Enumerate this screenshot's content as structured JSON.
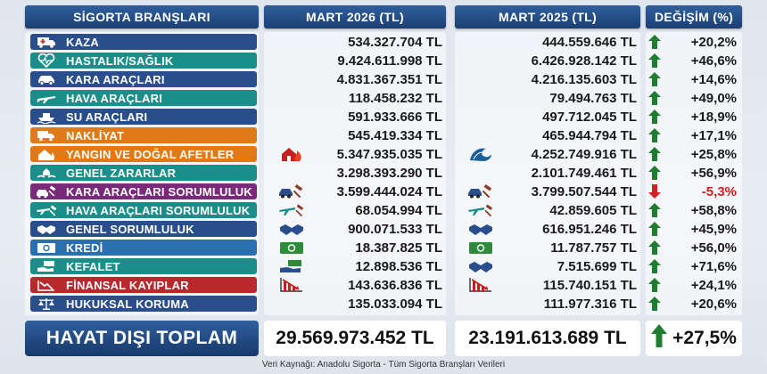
{
  "headers": {
    "branches": "SİGORTA BRANŞLARI",
    "y2026": "MART 2026 (TL)",
    "y2025": "MART 2025 (TL)",
    "change": "DEĞİŞİM (%)"
  },
  "colors": {
    "header_bg": "#1b3f74",
    "up_arrow": "#1e7d2e",
    "down_arrow": "#d21f1f",
    "negative_text": "#d21f1f"
  },
  "rows": [
    {
      "label": "KAZA",
      "icon": "ambulance-icon",
      "color": "#2a4e8c",
      "v2026": "534.327.704 TL",
      "v2025": "444.559.646 TL",
      "change": "+20,2%",
      "direction": "up"
    },
    {
      "label": "HASTALIK/SAĞLIK",
      "icon": "heart-pulse-icon",
      "color": "#1a8f8a",
      "v2026": "9.424.611.998 TL",
      "v2025": "6.426.928.142 TL",
      "change": "+46,6%",
      "direction": "up"
    },
    {
      "label": "KARA ARAÇLARI",
      "icon": "car-icon",
      "color": "#2a4e8c",
      "v2026": "4.831.367.351 TL",
      "v2025": "4.216.135.603 TL",
      "change": "+14,6%",
      "direction": "up"
    },
    {
      "label": "HAVA ARAÇLARI",
      "icon": "airplane-icon",
      "color": "#1a8f8a",
      "v2026": "118.458.232 TL",
      "v2025": "79.494.763 TL",
      "change": "+49,0%",
      "direction": "up"
    },
    {
      "label": "SU ARAÇLARI",
      "icon": "ship-icon",
      "color": "#2a4e8c",
      "v2026": "591.933.666 TL",
      "v2025": "497.712.045 TL",
      "change": "+18,9%",
      "direction": "up"
    },
    {
      "label": "NAKLİYAT",
      "icon": "truck-icon",
      "color": "#e07a17",
      "v2026": "545.419.334 TL",
      "v2025": "465.944.794 TL",
      "change": "+17,1%",
      "direction": "up"
    },
    {
      "label": "YANGIN VE DOĞAL AFETLER",
      "icon": "fire-house-icon",
      "color": "#e07a17",
      "v2026": "5.347.935.035 TL",
      "v2025": "4.252.749.916 TL",
      "change": "+25,8%",
      "direction": "up",
      "icon2026": "house-fire-icon",
      "icon2025": "tsunami-icon"
    },
    {
      "label": "GENEL ZARARLAR",
      "icon": "hands-house-icon",
      "color": "#1a8f8a",
      "v2026": "3.298.393.290 TL",
      "v2025": "2.101.749.461 TL",
      "change": "+56,9%",
      "direction": "up"
    },
    {
      "label": "KARA ARAÇLARI SORUMLULUK",
      "icon": "car-gavel-icon",
      "color": "#7a2a7a",
      "v2026": "3.599.444.024 TL",
      "v2025": "3.799.507.544 TL",
      "change": "-5,3%",
      "direction": "down",
      "icon2026": "car-gavel-icon",
      "icon2025": "car-gavel-icon"
    },
    {
      "label": "HAVA ARAÇLARI SORUMLULUK",
      "icon": "plane-gavel-icon",
      "color": "#1a8f8a",
      "v2026": "68.054.994 TL",
      "v2025": "42.859.605 TL",
      "change": "+58,8%",
      "direction": "up",
      "icon2026": "plane-gavel-icon",
      "icon2025": "plane-gavel-icon"
    },
    {
      "label": "GENEL SORUMLULUK",
      "icon": "handshake-icon",
      "color": "#2a4e8c",
      "v2026": "900.071.533 TL",
      "v2025": "616.951.246 TL",
      "change": "+45,9%",
      "direction": "up",
      "icon2026": "handshake-icon",
      "icon2025": "handshake-icon"
    },
    {
      "label": "KREDİ",
      "icon": "money-icon",
      "color": "#2a6fb0",
      "v2026": "18.387.825 TL",
      "v2025": "11.787.757 TL",
      "change": "+56,0%",
      "direction": "up",
      "icon2026": "money-icon",
      "icon2025": "money-icon"
    },
    {
      "label": "KEFALET",
      "icon": "hand-money-icon",
      "color": "#1a8f8a",
      "v2026": "12.898.536 TL",
      "v2025": "7.515.699 TL",
      "change": "+71,6%",
      "direction": "up",
      "icon2026": "hand-money-icon",
      "icon2025": "handshake-icon"
    },
    {
      "label": "FİNANSAL KAYIPLAR",
      "icon": "chart-down-icon",
      "color": "#b8282c",
      "v2026": "143.636.836 TL",
      "v2025": "115.740.151 TL",
      "change": "+24,1%",
      "direction": "up",
      "icon2026": "chart-down-icon",
      "icon2025": "chart-down-icon"
    },
    {
      "label": "HUKUKSAL KORUMA",
      "icon": "scales-icon",
      "color": "#2a4e8c",
      "v2026": "135.033.094 TL",
      "v2025": "111.977.316 TL",
      "change": "+20,6%",
      "direction": "up"
    }
  ],
  "total": {
    "label": "HAYAT DIŞI TOPLAM",
    "v2026": "29.569.973.452 TL",
    "v2025": "23.191.613.689 TL",
    "change": "+27,5%",
    "direction": "up"
  },
  "source": "Veri Kaynağı: Anadolu Sigorta - Tüm Sigorta Branşları Verileri"
}
